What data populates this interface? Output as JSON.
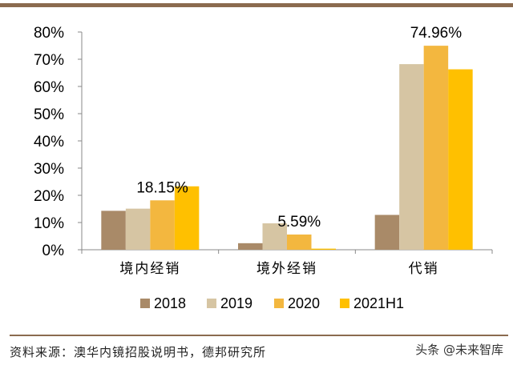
{
  "chart_data": {
    "type": "bar",
    "categories": [
      "境内经销",
      "境外经销",
      "代销"
    ],
    "series": [
      {
        "name": "2018",
        "color": "#a98a68",
        "values": [
          14.3,
          2.4,
          12.8
        ]
      },
      {
        "name": "2019",
        "color": "#d6c5a3",
        "values": [
          15.1,
          9.7,
          68.2
        ]
      },
      {
        "name": "2020",
        "color": "#f3b73f",
        "values": [
          18.15,
          5.59,
          74.96
        ]
      },
      {
        "name": "2021H1",
        "color": "#ffc000",
        "values": [
          23.3,
          0.4,
          66.3
        ]
      }
    ],
    "ylim": [
      0,
      80
    ],
    "yticks": [
      0,
      10,
      20,
      30,
      40,
      50,
      60,
      70,
      80
    ],
    "ytick_labels": [
      "0%",
      "10%",
      "20%",
      "30%",
      "40%",
      "50%",
      "60%",
      "70%",
      "80%"
    ],
    "annotations": [
      {
        "text": "18.15%",
        "category": 0,
        "series": 2
      },
      {
        "text": "5.59%",
        "category": 1,
        "series": 2
      },
      {
        "text": "74.96%",
        "category": 2,
        "series": 2
      }
    ],
    "grid": false,
    "legend_position": "bottom"
  },
  "footer": {
    "source": "资料来源：澳华内镜招股说明书，德邦研究所",
    "watermark": "头条 @未来智库"
  }
}
